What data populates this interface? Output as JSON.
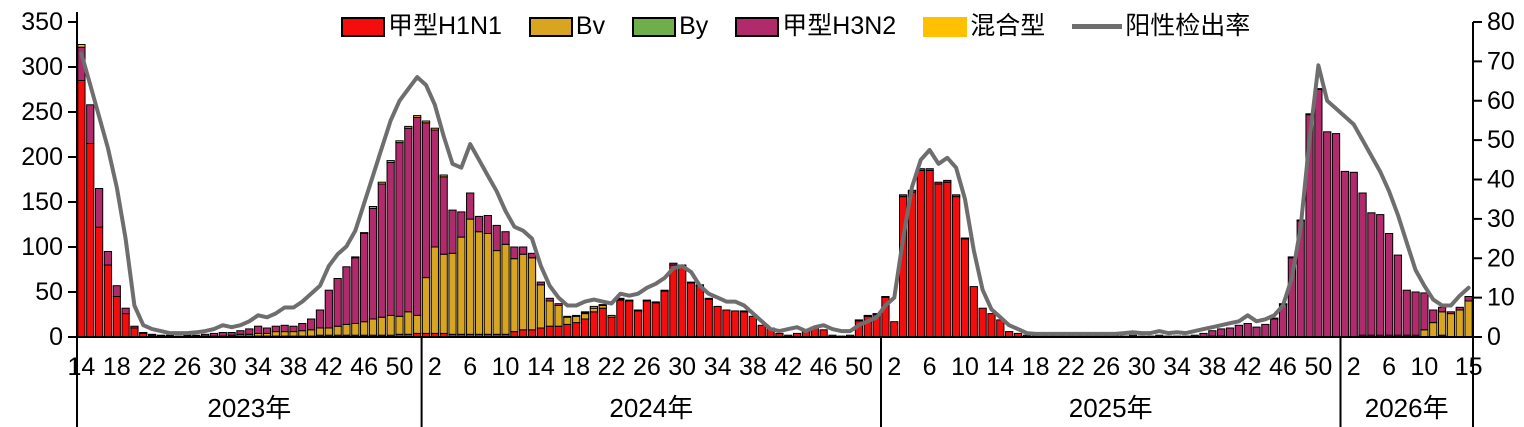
{
  "legend": {
    "items": [
      {
        "label": "甲型H1N1",
        "color": "#F50D0D",
        "swatch": "box",
        "border": true
      },
      {
        "label": "Bv",
        "color": "#D9A420",
        "swatch": "box",
        "border": true
      },
      {
        "label": "By",
        "color": "#6FAE4A",
        "swatch": "box",
        "border": true
      },
      {
        "label": "甲型H3N2",
        "color": "#B12A6B",
        "swatch": "box",
        "border": true
      },
      {
        "label": "混合型",
        "color": "#FFC000",
        "swatch": "box",
        "border": false
      },
      {
        "label": "阳性检出率",
        "color": "#6E6E6E",
        "swatch": "line",
        "border": false
      }
    ]
  },
  "chart_data": {
    "type": "bar",
    "subtype": "stacked-bars-with-rate-line",
    "left_axis": {
      "min": 0,
      "max": 350,
      "tick_step": 50,
      "tick_labels": [
        "0",
        "50",
        "100",
        "150",
        "200",
        "250",
        "300",
        "350"
      ]
    },
    "right_axis": {
      "min": 0,
      "max": 80,
      "tick_step": 10,
      "tick_labels": [
        "0",
        "10",
        "20",
        "30",
        "40",
        "50",
        "60",
        "70",
        "80"
      ]
    },
    "grid": "off",
    "legend_position": "top",
    "groups": [
      {
        "year_label": "2023年",
        "year_key": "y2023",
        "first_week": 14,
        "last_week": 52,
        "tick_weeks": [
          14,
          18,
          22,
          26,
          30,
          34,
          38,
          42,
          46,
          50
        ]
      },
      {
        "year_label": "2024年",
        "year_key": "y2024",
        "first_week": 1,
        "last_week": 52,
        "tick_weeks": [
          2,
          6,
          10,
          14,
          18,
          22,
          26,
          30,
          34,
          38,
          42,
          46,
          50
        ]
      },
      {
        "year_label": "2025年",
        "year_key": "y2025",
        "first_week": 1,
        "last_week": 52,
        "tick_weeks": [
          2,
          6,
          10,
          14,
          18,
          22,
          26,
          30,
          34,
          38,
          42,
          46,
          50
        ]
      },
      {
        "year_label": "2026年",
        "year_key": "y2026",
        "first_week": 1,
        "last_week": 15,
        "tick_weeks": [
          2,
          6,
          10,
          15
        ]
      }
    ],
    "series": [
      {
        "name": "甲型H1N1",
        "color": "#F50D0D",
        "values": {
          "y2023": [
            285,
            215,
            122,
            80,
            45,
            26,
            10,
            4,
            2,
            1,
            1,
            1,
            1,
            1,
            1,
            1,
            1,
            1,
            1,
            1,
            1,
            1,
            1,
            1,
            1,
            1,
            1,
            2,
            2,
            2,
            2,
            2,
            2,
            2,
            2,
            2,
            3,
            3,
            4
          ],
          "y2024": [
            4,
            4,
            4,
            3,
            3,
            3,
            3,
            3,
            3,
            3,
            6,
            8,
            8,
            10,
            12,
            12,
            14,
            16,
            20,
            28,
            32,
            22,
            41,
            40,
            29,
            40,
            38,
            51,
            80,
            79,
            60,
            57,
            42,
            34,
            30,
            29,
            28,
            23,
            13,
            10,
            4,
            2,
            4,
            6,
            11,
            8,
            2,
            1,
            2,
            18,
            23,
            25
          ],
          "y2025": [
            44,
            17,
            156,
            161,
            185,
            185,
            170,
            172,
            156,
            109,
            56,
            32,
            26,
            19,
            6,
            4,
            2,
            1,
            1,
            1,
            1,
            1,
            1,
            1,
            1,
            1,
            1,
            1,
            2,
            1,
            1,
            2,
            1,
            1,
            1,
            2,
            0,
            1,
            1,
            0,
            0,
            0,
            0,
            0,
            0,
            0,
            0,
            0,
            0,
            0,
            0,
            0
          ],
          "y2026": [
            0,
            0,
            0,
            0,
            0,
            0,
            0,
            0,
            0,
            0,
            0,
            2,
            0,
            0,
            0
          ]
        }
      },
      {
        "name": "Bv",
        "color": "#D9A420",
        "values": {
          "y2023": [
            0,
            0,
            0,
            0,
            0,
            0,
            0,
            0,
            0,
            0,
            0,
            0,
            0,
            0,
            0,
            0,
            0,
            1,
            2,
            2,
            3,
            3,
            5,
            5,
            5,
            6,
            7,
            8,
            8,
            10,
            12,
            13,
            15,
            18,
            20,
            22,
            20,
            25,
            20
          ],
          "y2024": [
            62,
            96,
            88,
            90,
            108,
            128,
            114,
            112,
            93,
            100,
            81,
            84,
            80,
            48,
            28,
            23,
            8,
            7,
            6,
            4,
            3,
            2,
            1,
            1,
            1,
            0,
            0,
            0,
            0,
            0,
            0,
            0,
            0,
            0,
            0,
            0,
            0,
            0,
            0,
            0,
            0,
            0,
            0,
            0,
            0,
            0,
            0,
            0,
            0,
            0,
            0,
            0
          ],
          "y2025": [
            0,
            0,
            0,
            0,
            0,
            0,
            0,
            0,
            0,
            0,
            0,
            0,
            0,
            0,
            0,
            0,
            0,
            0,
            0,
            0,
            0,
            0,
            0,
            0,
            0,
            0,
            0,
            0,
            0,
            0,
            0,
            0,
            0,
            0,
            0,
            0,
            0,
            0,
            0,
            0,
            0,
            0,
            0,
            0,
            0,
            0,
            0,
            0,
            0,
            0,
            0,
            0
          ],
          "y2026": [
            0,
            0,
            2,
            2,
            2,
            2,
            2,
            2,
            2,
            8,
            16,
            26,
            26,
            30,
            40
          ]
        }
      },
      {
        "name": "By",
        "color": "#6FAE4A",
        "values": {
          "y2023": [
            0,
            0,
            0,
            0,
            0,
            0,
            0,
            0,
            0,
            0,
            0,
            0,
            0,
            0,
            0,
            0,
            0,
            0,
            0,
            0,
            0,
            0,
            0,
            0,
            0,
            0,
            0,
            0,
            0,
            0,
            0,
            0,
            0,
            0,
            0,
            0,
            0,
            0,
            0
          ],
          "y2024": [
            0,
            0,
            0,
            0,
            0,
            0,
            0,
            0,
            0,
            0,
            0,
            0,
            0,
            0,
            0,
            0,
            0,
            0,
            0,
            0,
            0,
            0,
            0,
            0,
            0,
            0,
            0,
            0,
            0,
            0,
            0,
            0,
            0,
            0,
            0,
            0,
            0,
            0,
            0,
            0,
            0,
            0,
            0,
            0,
            0,
            0,
            0,
            0,
            0,
            0,
            0,
            0
          ],
          "y2025": [
            0,
            0,
            0,
            0,
            0,
            0,
            0,
            0,
            0,
            0,
            0,
            0,
            0,
            0,
            0,
            0,
            0,
            0,
            0,
            0,
            0,
            0,
            0,
            0,
            0,
            0,
            0,
            0,
            0,
            0,
            0,
            0,
            0,
            0,
            0,
            0,
            0,
            0,
            0,
            0,
            0,
            0,
            0,
            0,
            0,
            0,
            0,
            0,
            0,
            0,
            0,
            0
          ],
          "y2026": [
            0,
            0,
            0,
            0,
            0,
            0,
            0,
            0,
            0,
            0,
            0,
            0,
            0,
            0,
            0
          ]
        }
      },
      {
        "name": "甲型H3N2",
        "color": "#B12A6B",
        "values": {
          "y2023": [
            37,
            43,
            43,
            15,
            12,
            6,
            2,
            1,
            1,
            1,
            1,
            0,
            1,
            1,
            2,
            3,
            4,
            3,
            4,
            6,
            8,
            6,
            6,
            7,
            6,
            8,
            12,
            20,
            42,
            53,
            64,
            73,
            98,
            123,
            148,
            170,
            193,
            204,
            220
          ],
          "y2024": [
            172,
            130,
            86,
            48,
            28,
            29,
            17,
            20,
            28,
            14,
            13,
            8,
            5,
            3,
            3,
            2,
            1,
            1,
            1,
            0,
            1,
            0,
            1,
            0,
            0,
            1,
            1,
            1,
            2,
            1,
            1,
            1,
            1,
            0,
            0,
            0,
            1,
            0,
            0,
            0,
            0,
            0,
            0,
            0,
            0,
            0,
            0,
            0,
            0,
            1,
            1,
            1
          ],
          "y2025": [
            1,
            0,
            2,
            2,
            2,
            2,
            2,
            2,
            2,
            1,
            0,
            0,
            0,
            0,
            0,
            0,
            0,
            0,
            0,
            0,
            0,
            0,
            0,
            0,
            0,
            0,
            0,
            0,
            0,
            0,
            0,
            0,
            0,
            0,
            0,
            0,
            4,
            6,
            8,
            10,
            13,
            15,
            11,
            14,
            20,
            36,
            88,
            129,
            247,
            275,
            228,
            226
          ],
          "y2026": [
            184,
            183,
            158,
            136,
            134,
            113,
            89,
            50,
            48,
            41,
            14,
            5,
            2,
            3,
            5
          ]
        }
      },
      {
        "name": "混合型",
        "color": "#FFC000",
        "values": {
          "y2023": [
            3,
            0,
            0,
            0,
            0,
            0,
            0,
            0,
            0,
            0,
            0,
            0,
            0,
            0,
            0,
            0,
            0,
            0,
            0,
            0,
            0,
            0,
            0,
            0,
            0,
            0,
            0,
            0,
            0,
            0,
            0,
            1,
            1,
            2,
            2,
            2,
            2,
            2,
            2
          ],
          "y2024": [
            2,
            2,
            2,
            0,
            0,
            0,
            0,
            0,
            0,
            0,
            0,
            0,
            0,
            0,
            0,
            0,
            0,
            0,
            1,
            2,
            0,
            0,
            0,
            0,
            0,
            0,
            0,
            0,
            0,
            0,
            0,
            0,
            0,
            0,
            0,
            0,
            0,
            0,
            0,
            0,
            0,
            0,
            0,
            0,
            0,
            0,
            0,
            0,
            0,
            0,
            0,
            0
          ],
          "y2025": [
            0,
            0,
            0,
            0,
            0,
            0,
            0,
            0,
            0,
            0,
            0,
            0,
            0,
            0,
            0,
            0,
            0,
            0,
            0,
            0,
            0,
            0,
            0,
            0,
            0,
            0,
            0,
            0,
            0,
            0,
            0,
            0,
            0,
            0,
            0,
            0,
            0,
            0,
            0,
            0,
            0,
            0,
            0,
            0,
            1,
            1,
            1,
            1,
            1,
            1,
            0,
            0
          ],
          "y2026": [
            0,
            0,
            0,
            0,
            0,
            0,
            0,
            0,
            0,
            0,
            0,
            0,
            0,
            0,
            0
          ]
        }
      }
    ],
    "line_series": {
      "name": "阳性检出率",
      "color": "#6E6E6E",
      "axis": "right",
      "values": {
        "y2023": [
          72,
          64,
          56,
          48,
          38,
          25,
          8,
          3,
          2,
          1.5,
          1,
          1,
          1,
          1.2,
          1.5,
          2,
          3,
          2.5,
          3,
          4,
          5.5,
          5,
          6,
          7.5,
          7.5,
          9,
          11,
          13,
          18,
          21,
          23,
          27,
          34,
          41,
          48,
          55,
          60,
          63,
          66
        ],
        "y2024": [
          64,
          59,
          51,
          44,
          43,
          49,
          45,
          41,
          37,
          32,
          28,
          27,
          25,
          18,
          13,
          10,
          8,
          8,
          9,
          9.5,
          9,
          8.5,
          11,
          10.5,
          11,
          12.5,
          13.5,
          15,
          17.5,
          18,
          16.5,
          13,
          11,
          10,
          9,
          9,
          8,
          6,
          4,
          2,
          1.5,
          2,
          2.5,
          1.5,
          2.5,
          3,
          2,
          1.5,
          1.5,
          3,
          4,
          5
        ],
        "y2025": [
          8,
          10,
          25,
          38,
          45,
          47.5,
          44,
          45.5,
          43,
          35,
          22,
          12,
          7,
          5,
          3,
          2,
          1,
          0.8,
          0.8,
          0.8,
          0.8,
          0.8,
          0.8,
          0.8,
          0.8,
          0.8,
          0.8,
          1,
          1.2,
          1,
          1,
          1.5,
          1,
          1.2,
          1,
          1.5,
          2,
          2.5,
          3,
          3.5,
          4,
          5.5,
          4,
          4.5,
          5.5,
          8,
          15,
          28,
          50,
          69,
          60,
          58
        ],
        "y2026": [
          56,
          54,
          50,
          46,
          42,
          37,
          31,
          24,
          17,
          13,
          9.5,
          8,
          8,
          10.5,
          12.5
        ]
      }
    }
  }
}
